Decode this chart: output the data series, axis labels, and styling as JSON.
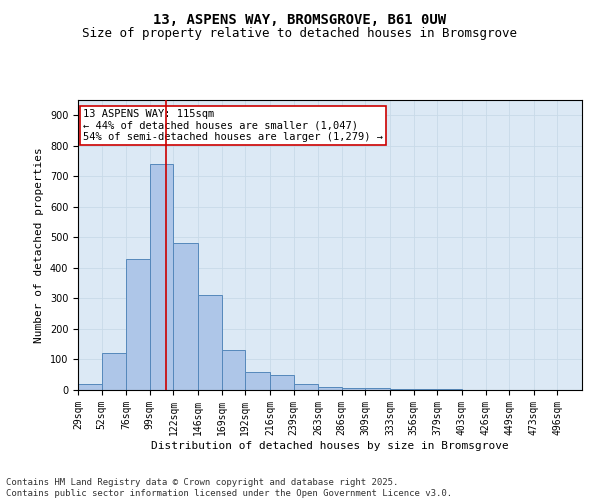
{
  "title1": "13, ASPENS WAY, BROMSGROVE, B61 0UW",
  "title2": "Size of property relative to detached houses in Bromsgrove",
  "xlabel": "Distribution of detached houses by size in Bromsgrove",
  "ylabel": "Number of detached properties",
  "bar_color": "#aec6e8",
  "bar_edge_color": "#5588bb",
  "grid_color": "#c8dae8",
  "vline_x": 115,
  "vline_color": "#cc0000",
  "annotation_text": "13 ASPENS WAY: 115sqm\n← 44% of detached houses are smaller (1,047)\n54% of semi-detached houses are larger (1,279) →",
  "annotation_box_color": "#ffffff",
  "annotation_edge_color": "#cc0000",
  "categories": [
    "29sqm",
    "52sqm",
    "76sqm",
    "99sqm",
    "122sqm",
    "146sqm",
    "169sqm",
    "192sqm",
    "216sqm",
    "239sqm",
    "263sqm",
    "286sqm",
    "309sqm",
    "333sqm",
    "356sqm",
    "379sqm",
    "403sqm",
    "426sqm",
    "449sqm",
    "473sqm",
    "496sqm"
  ],
  "bin_edges": [
    29,
    52,
    76,
    99,
    122,
    146,
    169,
    192,
    216,
    239,
    263,
    286,
    309,
    333,
    356,
    379,
    403,
    426,
    449,
    473,
    496,
    520
  ],
  "values": [
    20,
    120,
    430,
    740,
    480,
    310,
    130,
    60,
    50,
    20,
    10,
    8,
    5,
    4,
    3,
    2,
    1,
    1,
    1,
    1,
    1
  ],
  "ylim": [
    0,
    950
  ],
  "yticks": [
    0,
    100,
    200,
    300,
    400,
    500,
    600,
    700,
    800,
    900
  ],
  "background_color": "#dce9f5",
  "footer_text": "Contains HM Land Registry data © Crown copyright and database right 2025.\nContains public sector information licensed under the Open Government Licence v3.0.",
  "title1_fontsize": 10,
  "title2_fontsize": 9,
  "xlabel_fontsize": 8,
  "ylabel_fontsize": 8,
  "tick_fontsize": 7,
  "annotation_fontsize": 7.5,
  "footer_fontsize": 6.5
}
